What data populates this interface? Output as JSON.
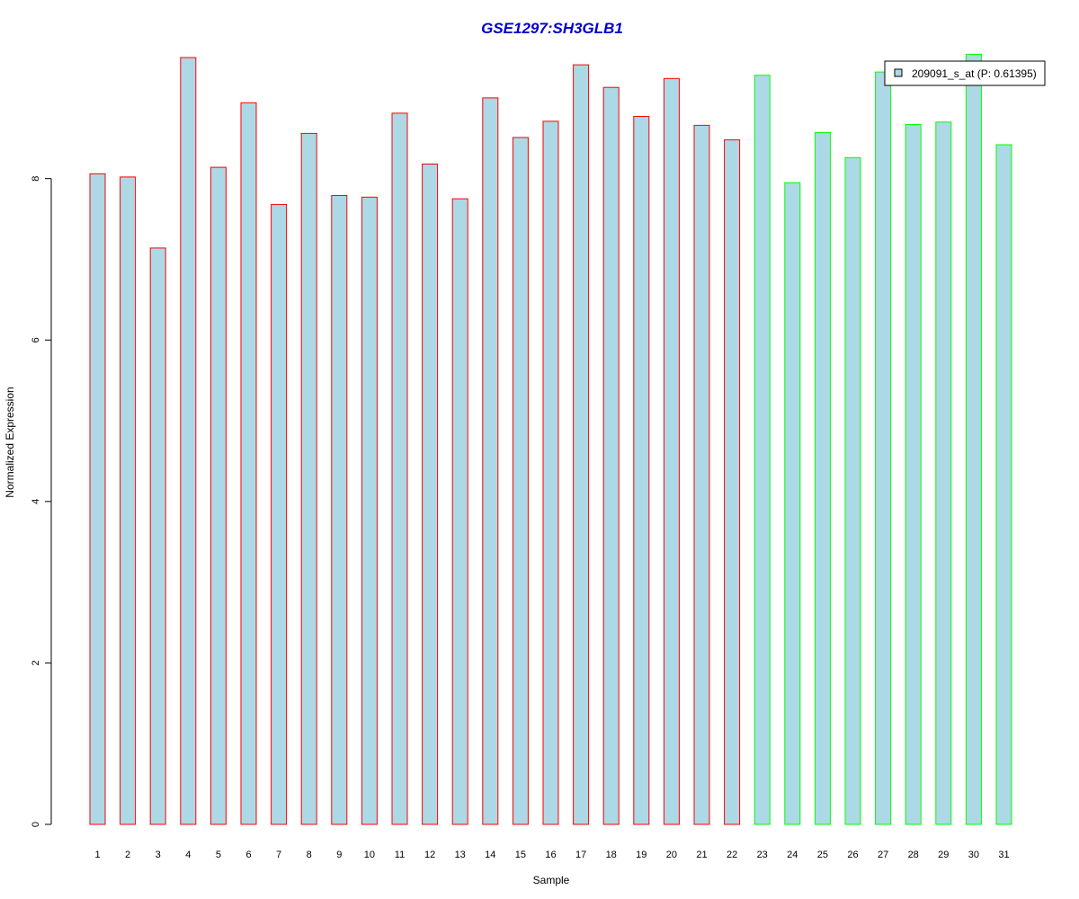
{
  "chart_data": {
    "type": "bar",
    "title": "GSE1297:SH3GLB1",
    "xlabel": "Sample",
    "ylabel": "Normalized Expression",
    "ylim": [
      0,
      9.6
    ],
    "yticks": [
      0,
      2,
      4,
      6,
      8
    ],
    "grid": false,
    "legend_position": "top-right",
    "categories": [
      "1",
      "2",
      "3",
      "4",
      "5",
      "6",
      "7",
      "8",
      "9",
      "10",
      "11",
      "12",
      "13",
      "14",
      "15",
      "16",
      "17",
      "18",
      "19",
      "20",
      "21",
      "22",
      "23",
      "24",
      "25",
      "26",
      "27",
      "28",
      "29",
      "30",
      "31"
    ],
    "series": [
      {
        "name": "209091_s_at (P: 0.61395)",
        "values": [
          8.06,
          8.02,
          7.14,
          9.5,
          8.14,
          8.94,
          7.68,
          8.56,
          7.79,
          7.77,
          8.81,
          8.18,
          7.75,
          9.0,
          8.51,
          8.71,
          9.41,
          9.13,
          8.77,
          9.24,
          8.66,
          8.48,
          9.28,
          7.95,
          8.57,
          8.26,
          9.32,
          8.67,
          8.7,
          9.54,
          8.42
        ],
        "groups": [
          "red",
          "red",
          "red",
          "red",
          "red",
          "red",
          "red",
          "red",
          "red",
          "red",
          "red",
          "red",
          "red",
          "red",
          "red",
          "red",
          "red",
          "red",
          "red",
          "red",
          "red",
          "red",
          "green",
          "green",
          "green",
          "green",
          "green",
          "green",
          "green",
          "green",
          "green"
        ]
      }
    ],
    "colors": {
      "bar_fill": "#add8e6",
      "group_red": "#ff0000",
      "group_green": "#00ff00",
      "title": "#0000cd",
      "axis": "#000000"
    }
  }
}
